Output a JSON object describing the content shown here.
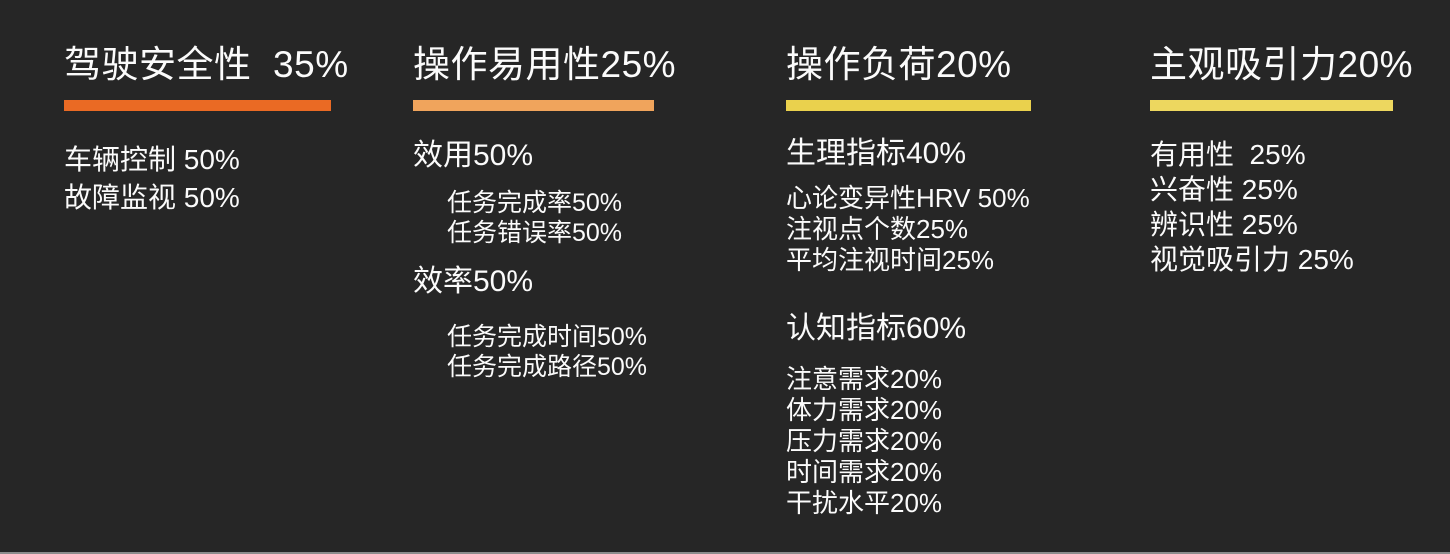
{
  "page": {
    "background": "#262626",
    "text_color": "#FBFBFB",
    "bottom_edge_color": "#8C8C8C"
  },
  "columns": [
    {
      "title": "驾驶安全性  35%",
      "accent": "#EA6A24",
      "items": [
        "车辆控制 50%",
        "故障监视 50%"
      ]
    },
    {
      "title": "操作易用性25%",
      "accent": "#F0A45C",
      "groups": [
        {
          "heading": "效用50%",
          "children": [
            "任务完成率50%",
            "任务错误率50%"
          ]
        },
        {
          "heading": "效率50%",
          "children": [
            "任务完成时间50%",
            "任务完成路径50%"
          ]
        }
      ]
    },
    {
      "title": "操作负荷20%",
      "accent": "#EAD14D",
      "groups": [
        {
          "heading": "生理指标40%",
          "children": [
            "心论变异性HRV 50%",
            "注视点个数25%",
            "平均注视时间25%"
          ]
        },
        {
          "heading": "认知指标60%",
          "children": [
            "注意需求20%",
            "体力需求20%",
            "压力需求20%",
            "时间需求20%",
            "干扰水平20%"
          ]
        }
      ]
    },
    {
      "title": "主观吸引力20%",
      "accent": "#EDD75F",
      "items": [
        "有用性  25%",
        "兴奋性 25%",
        "辨识性 25%",
        "视觉吸引力 25%"
      ]
    }
  ]
}
